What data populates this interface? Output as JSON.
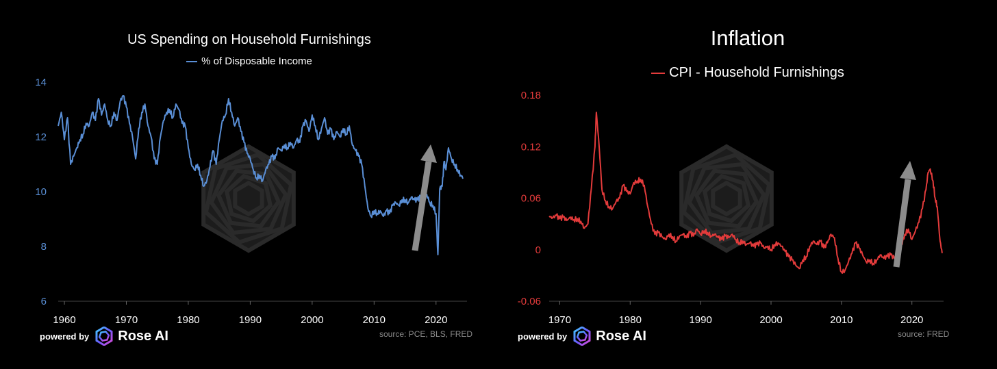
{
  "colors": {
    "left_series": "#5a8fd6",
    "right_series": "#e33b3b",
    "background": "#000000",
    "arrow": "#8c8c8c"
  },
  "branding": {
    "powered_by": "powered by",
    "brand_name": "Rose AI",
    "logo_icon": "rose-ai-spiral-icon",
    "watermark_icon": "hexagon-spiral-watermark-icon"
  },
  "chart_data": [
    {
      "type": "line",
      "title": "US Spending on Household Furnishings",
      "legend": "% of Disposable Income",
      "source": "source: PCE, BLS, FRED",
      "xlim": [
        1959,
        2025
      ],
      "ylim": [
        6,
        14
      ],
      "xticks": [
        1960,
        1970,
        1980,
        1990,
        2000,
        2010,
        2020
      ],
      "yticks": [
        6,
        8,
        10,
        12,
        14
      ],
      "grid": false,
      "annotation": "upward arrow from ~2017 to ~2019",
      "series": [
        {
          "values": [
            [
              1959.0,
              12.4
            ],
            [
              1959.5,
              12.9
            ],
            [
              1960.0,
              11.9
            ],
            [
              1960.5,
              12.7
            ],
            [
              1961.0,
              11.0
            ],
            [
              1961.5,
              11.3
            ],
            [
              1962.0,
              11.6
            ],
            [
              1962.5,
              11.9
            ],
            [
              1963.0,
              12.1
            ],
            [
              1963.5,
              12.5
            ],
            [
              1964.0,
              12.4
            ],
            [
              1964.5,
              12.9
            ],
            [
              1965.0,
              12.6
            ],
            [
              1965.5,
              13.4
            ],
            [
              1966.0,
              12.8
            ],
            [
              1966.5,
              13.2
            ],
            [
              1967.0,
              12.6
            ],
            [
              1967.5,
              12.4
            ],
            [
              1968.0,
              12.9
            ],
            [
              1968.5,
              12.6
            ],
            [
              1969.0,
              13.3
            ],
            [
              1969.5,
              13.5
            ],
            [
              1970.0,
              13.1
            ],
            [
              1970.5,
              12.5
            ],
            [
              1971.0,
              12.0
            ],
            [
              1971.5,
              11.2
            ],
            [
              1972.0,
              12.3
            ],
            [
              1972.5,
              12.9
            ],
            [
              1973.0,
              13.2
            ],
            [
              1973.5,
              12.4
            ],
            [
              1974.0,
              12.0
            ],
            [
              1974.5,
              11.2
            ],
            [
              1975.0,
              11.0
            ],
            [
              1975.5,
              12.0
            ],
            [
              1976.0,
              12.6
            ],
            [
              1976.5,
              12.9
            ],
            [
              1977.0,
              13.0
            ],
            [
              1977.5,
              12.7
            ],
            [
              1978.0,
              13.2
            ],
            [
              1978.5,
              13.0
            ],
            [
              1979.0,
              12.5
            ],
            [
              1979.5,
              12.4
            ],
            [
              1980.0,
              11.6
            ],
            [
              1980.5,
              11.0
            ],
            [
              1981.0,
              10.8
            ],
            [
              1981.5,
              11.0
            ],
            [
              1982.0,
              10.6
            ],
            [
              1982.5,
              10.2
            ],
            [
              1983.0,
              10.4
            ],
            [
              1983.5,
              10.9
            ],
            [
              1984.0,
              11.5
            ],
            [
              1984.5,
              11.0
            ],
            [
              1985.0,
              11.9
            ],
            [
              1985.5,
              12.6
            ],
            [
              1986.0,
              12.8
            ],
            [
              1986.5,
              13.4
            ],
            [
              1987.0,
              12.9
            ],
            [
              1987.5,
              12.4
            ],
            [
              1988.0,
              12.7
            ],
            [
              1988.5,
              12.2
            ],
            [
              1989.0,
              11.8
            ],
            [
              1989.5,
              11.4
            ],
            [
              1990.0,
              11.2
            ],
            [
              1990.5,
              10.8
            ],
            [
              1991.0,
              10.5
            ],
            [
              1991.5,
              10.6
            ],
            [
              1992.0,
              10.4
            ],
            [
              1992.5,
              10.8
            ],
            [
              1993.0,
              11.0
            ],
            [
              1993.5,
              11.3
            ],
            [
              1994.0,
              11.2
            ],
            [
              1994.5,
              11.6
            ],
            [
              1995.0,
              11.5
            ],
            [
              1995.5,
              11.7
            ],
            [
              1996.0,
              11.6
            ],
            [
              1996.5,
              11.8
            ],
            [
              1997.0,
              11.6
            ],
            [
              1997.5,
              11.9
            ],
            [
              1998.0,
              11.8
            ],
            [
              1998.5,
              12.4
            ],
            [
              1999.0,
              12.6
            ],
            [
              1999.5,
              12.2
            ],
            [
              2000.0,
              12.8
            ],
            [
              2000.5,
              12.4
            ],
            [
              2001.0,
              11.9
            ],
            [
              2001.5,
              12.3
            ],
            [
              2002.0,
              12.7
            ],
            [
              2002.5,
              12.1
            ],
            [
              2003.0,
              12.3
            ],
            [
              2003.5,
              11.9
            ],
            [
              2004.0,
              12.2
            ],
            [
              2004.5,
              12.0
            ],
            [
              2005.0,
              12.3
            ],
            [
              2005.5,
              12.1
            ],
            [
              2006.0,
              12.4
            ],
            [
              2006.5,
              11.7
            ],
            [
              2007.0,
              11.5
            ],
            [
              2007.5,
              11.3
            ],
            [
              2008.0,
              11.0
            ],
            [
              2008.5,
              10.2
            ],
            [
              2009.0,
              9.4
            ],
            [
              2009.5,
              9.1
            ],
            [
              2010.0,
              9.3
            ],
            [
              2010.5,
              9.2
            ],
            [
              2011.0,
              9.3
            ],
            [
              2011.5,
              9.1
            ],
            [
              2012.0,
              9.3
            ],
            [
              2012.5,
              9.2
            ],
            [
              2013.0,
              9.5
            ],
            [
              2013.5,
              9.6
            ],
            [
              2014.0,
              9.5
            ],
            [
              2014.5,
              9.7
            ],
            [
              2015.0,
              9.7
            ],
            [
              2015.5,
              9.6
            ],
            [
              2016.0,
              9.8
            ],
            [
              2016.5,
              9.7
            ],
            [
              2017.0,
              9.7
            ],
            [
              2017.5,
              9.8
            ],
            [
              2018.0,
              9.6
            ],
            [
              2018.5,
              9.9
            ],
            [
              2019.0,
              9.6
            ],
            [
              2019.5,
              9.5
            ],
            [
              2020.0,
              9.2
            ],
            [
              2020.3,
              7.7
            ],
            [
              2020.6,
              10.1
            ],
            [
              2021.0,
              10.2
            ],
            [
              2021.3,
              11.1
            ],
            [
              2021.6,
              10.8
            ],
            [
              2022.0,
              11.6
            ],
            [
              2022.5,
              11.2
            ],
            [
              2023.0,
              11.0
            ],
            [
              2023.5,
              10.8
            ],
            [
              2024.0,
              10.6
            ],
            [
              2024.4,
              10.5
            ]
          ]
        }
      ]
    },
    {
      "type": "line",
      "title": "Inflation",
      "legend": "CPI - Household Furnishings",
      "source": "source: FRED",
      "xlim": [
        1968.5,
        2024.5
      ],
      "ylim": [
        -0.06,
        0.18
      ],
      "xticks": [
        1970,
        1980,
        1990,
        2000,
        2010,
        2020
      ],
      "yticks": [
        0.18,
        0.12,
        0.06,
        0,
        -0.06
      ],
      "ytick_labels": [
        "0.18",
        "0.12",
        "0.06",
        "0",
        "-0.06"
      ],
      "grid": false,
      "annotation": "upward arrow from ~2017 to ~2019",
      "series": [
        {
          "values": [
            [
              1968.5,
              0.039
            ],
            [
              1969.0,
              0.037
            ],
            [
              1969.5,
              0.04
            ],
            [
              1970.0,
              0.036
            ],
            [
              1970.5,
              0.038
            ],
            [
              1971.0,
              0.034
            ],
            [
              1971.5,
              0.038
            ],
            [
              1972.0,
              0.035
            ],
            [
              1972.5,
              0.036
            ],
            [
              1973.0,
              0.033
            ],
            [
              1973.5,
              0.025
            ],
            [
              1974.0,
              0.03
            ],
            [
              1974.5,
              0.072
            ],
            [
              1975.0,
              0.12
            ],
            [
              1975.2,
              0.16
            ],
            [
              1975.6,
              0.12
            ],
            [
              1976.0,
              0.07
            ],
            [
              1976.5,
              0.057
            ],
            [
              1977.0,
              0.05
            ],
            [
              1977.5,
              0.048
            ],
            [
              1978.0,
              0.056
            ],
            [
              1978.5,
              0.06
            ],
            [
              1979.0,
              0.075
            ],
            [
              1979.5,
              0.068
            ],
            [
              1980.0,
              0.065
            ],
            [
              1980.5,
              0.078
            ],
            [
              1981.0,
              0.08
            ],
            [
              1981.5,
              0.082
            ],
            [
              1982.0,
              0.075
            ],
            [
              1982.5,
              0.05
            ],
            [
              1983.0,
              0.03
            ],
            [
              1983.5,
              0.018
            ],
            [
              1984.0,
              0.02
            ],
            [
              1984.5,
              0.015
            ],
            [
              1985.0,
              0.012
            ],
            [
              1985.5,
              0.018
            ],
            [
              1986.0,
              0.015
            ],
            [
              1986.5,
              0.01
            ],
            [
              1987.0,
              0.016
            ],
            [
              1987.5,
              0.018
            ],
            [
              1988.0,
              0.014
            ],
            [
              1988.5,
              0.02
            ],
            [
              1989.0,
              0.016
            ],
            [
              1989.5,
              0.024
            ],
            [
              1990.0,
              0.018
            ],
            [
              1990.5,
              0.022
            ],
            [
              1991.0,
              0.02
            ],
            [
              1991.5,
              0.016
            ],
            [
              1992.0,
              0.018
            ],
            [
              1992.5,
              0.014
            ],
            [
              1993.0,
              0.012
            ],
            [
              1993.5,
              0.016
            ],
            [
              1994.0,
              0.014
            ],
            [
              1994.5,
              0.018
            ],
            [
              1995.0,
              0.012
            ],
            [
              1995.5,
              0.008
            ],
            [
              1996.0,
              0.01
            ],
            [
              1996.5,
              0.006
            ],
            [
              1997.0,
              0.008
            ],
            [
              1997.5,
              0.004
            ],
            [
              1998.0,
              0.006
            ],
            [
              1998.5,
              0.008
            ],
            [
              1999.0,
              0.002
            ],
            [
              1999.5,
              0.004
            ],
            [
              2000.0,
              0.0
            ],
            [
              2000.5,
              0.006
            ],
            [
              2001.0,
              0.008
            ],
            [
              2001.5,
              0.004
            ],
            [
              2002.0,
              -0.002
            ],
            [
              2002.5,
              -0.008
            ],
            [
              2003.0,
              -0.012
            ],
            [
              2003.5,
              -0.018
            ],
            [
              2004.0,
              -0.022
            ],
            [
              2004.5,
              -0.012
            ],
            [
              2005.0,
              -0.008
            ],
            [
              2005.5,
              0.004
            ],
            [
              2006.0,
              0.01
            ],
            [
              2006.5,
              0.006
            ],
            [
              2007.0,
              0.01
            ],
            [
              2007.5,
              0.002
            ],
            [
              2008.0,
              0.008
            ],
            [
              2008.5,
              0.018
            ],
            [
              2009.0,
              0.014
            ],
            [
              2009.5,
              -0.01
            ],
            [
              2010.0,
              -0.026
            ],
            [
              2010.5,
              -0.024
            ],
            [
              2011.0,
              -0.014
            ],
            [
              2011.5,
              -0.004
            ],
            [
              2012.0,
              0.008
            ],
            [
              2012.5,
              0.002
            ],
            [
              2013.0,
              -0.006
            ],
            [
              2013.5,
              -0.014
            ],
            [
              2014.0,
              -0.012
            ],
            [
              2014.5,
              -0.016
            ],
            [
              2015.0,
              -0.012
            ],
            [
              2015.5,
              -0.006
            ],
            [
              2016.0,
              -0.01
            ],
            [
              2016.5,
              -0.008
            ],
            [
              2017.0,
              -0.006
            ],
            [
              2017.5,
              -0.01
            ],
            [
              2018.0,
              -0.004
            ],
            [
              2018.5,
              0.006
            ],
            [
              2019.0,
              0.018
            ],
            [
              2019.5,
              0.024
            ],
            [
              2020.0,
              0.012
            ],
            [
              2020.5,
              0.022
            ],
            [
              2021.0,
              0.032
            ],
            [
              2021.5,
              0.048
            ],
            [
              2022.0,
              0.07
            ],
            [
              2022.3,
              0.09
            ],
            [
              2022.6,
              0.094
            ],
            [
              2023.0,
              0.08
            ],
            [
              2023.3,
              0.06
            ],
            [
              2023.6,
              0.05
            ],
            [
              2024.0,
              0.01
            ],
            [
              2024.3,
              -0.004
            ]
          ]
        }
      ]
    }
  ]
}
